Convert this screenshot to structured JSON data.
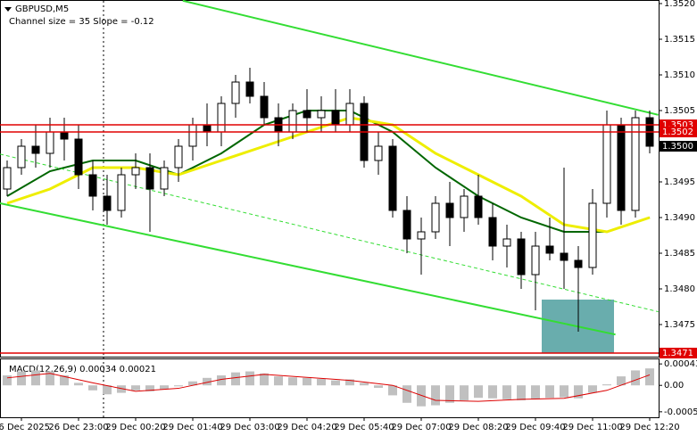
{
  "chart_data": {
    "type": "candlestick",
    "title": "GBPUSD,M5",
    "subtitle": "Channel size = 35 Slope = -0.12",
    "categories": [
      null,
      "26 Dec 2025",
      null,
      null,
      null,
      "26 Dec 23:00",
      null,
      null,
      null,
      "29 Dec 00:20",
      null,
      null,
      null,
      "29 Dec 01:40",
      null,
      null,
      null,
      "29 Dec 03:00",
      null,
      null,
      null,
      "29 Dec 04:20",
      null,
      null,
      null,
      "29 Dec 05:40",
      null,
      null,
      null,
      "29 Dec 07:00",
      null,
      null,
      null,
      "29 Dec 08:20",
      null,
      null,
      null,
      "29 Dec 09:40",
      null,
      null,
      null,
      "29 Dec 11:00",
      null,
      null,
      null,
      "29 Dec 12:20"
    ],
    "open": [
      1.3494,
      1.3497,
      1.35,
      1.3499,
      1.3502,
      1.3501,
      1.3496,
      1.3493,
      1.3491,
      1.3496,
      1.3497,
      1.3494,
      1.3497,
      1.35,
      1.3503,
      1.3502,
      1.3506,
      1.3509,
      1.3507,
      1.3504,
      1.3502,
      1.3505,
      1.3504,
      1.3505,
      1.3503,
      1.3506,
      1.3498,
      1.35,
      1.3491,
      1.3487,
      1.3488,
      1.3492,
      1.349,
      1.3493,
      1.349,
      1.3486,
      1.3487,
      1.3482,
      1.3486,
      1.3485,
      1.3484,
      1.3483,
      1.3492,
      1.3503,
      1.3491,
      1.3504
    ],
    "high": [
      1.3498,
      1.3501,
      1.3503,
      1.3504,
      1.3504,
      1.3503,
      1.3498,
      1.3496,
      1.3497,
      1.3499,
      1.3499,
      1.3498,
      1.3501,
      1.3504,
      1.3506,
      1.3507,
      1.351,
      1.3511,
      1.3509,
      1.3506,
      1.3506,
      1.3508,
      1.3507,
      1.3508,
      1.3508,
      1.3507,
      1.3502,
      1.3501,
      1.3493,
      1.349,
      1.3493,
      1.3495,
      1.3494,
      1.3496,
      1.3492,
      1.3489,
      1.3488,
      1.3488,
      1.349,
      1.3497,
      1.3486,
      1.3494,
      1.3505,
      1.3504,
      1.3505,
      1.3505
    ],
    "low": [
      1.3493,
      1.3496,
      1.3497,
      1.3497,
      1.3498,
      1.3494,
      1.3491,
      1.3489,
      1.349,
      1.3494,
      1.3488,
      1.3493,
      1.3495,
      1.3498,
      1.35,
      1.35,
      1.3504,
      1.3506,
      1.3503,
      1.35,
      1.3501,
      1.3502,
      1.3502,
      1.3502,
      1.3502,
      1.3497,
      1.3496,
      1.349,
      1.3485,
      1.3482,
      1.3487,
      1.3486,
      1.3488,
      1.3489,
      1.3484,
      1.3483,
      1.348,
      1.3477,
      1.3484,
      1.348,
      1.3474,
      1.3482,
      1.349,
      1.3489,
      1.349,
      1.3499
    ],
    "close": [
      1.3497,
      1.35,
      1.3499,
      1.3502,
      1.3501,
      1.3496,
      1.3493,
      1.3491,
      1.3496,
      1.3497,
      1.3494,
      1.3497,
      1.35,
      1.3503,
      1.3502,
      1.3506,
      1.3509,
      1.3507,
      1.3504,
      1.3502,
      1.3505,
      1.3504,
      1.3505,
      1.3503,
      1.3506,
      1.3498,
      1.35,
      1.3491,
      1.3487,
      1.3488,
      1.3492,
      1.349,
      1.3493,
      1.349,
      1.3486,
      1.3487,
      1.3482,
      1.3486,
      1.3485,
      1.3484,
      1.3483,
      1.3492,
      1.3503,
      1.3491,
      1.3504,
      1.35
    ],
    "lines": [
      {
        "color": "#00aa00",
        "width": 2,
        "x": [
          0,
          3,
          6,
          9,
          12,
          15,
          18,
          21,
          24,
          27,
          30,
          33,
          36,
          39,
          42,
          45
        ],
        "values": [
          1.3493,
          1.34965,
          1.3498,
          1.3498,
          1.3496,
          1.3499,
          1.3503,
          1.3505,
          1.3505,
          1.3502,
          1.3497,
          1.3493,
          1.349,
          1.3488,
          1.3488,
          1.349
        ]
      },
      {
        "color": "#eeee00",
        "width": 3,
        "x": [
          0,
          3,
          6,
          9,
          12,
          15,
          18,
          21,
          24,
          27,
          30,
          33,
          36,
          39,
          42,
          45
        ],
        "values": [
          1.3492,
          1.3494,
          1.3497,
          1.3497,
          1.3496,
          1.3498,
          1.35,
          1.3502,
          1.3504,
          1.3503,
          1.3499,
          1.3496,
          1.3493,
          1.3489,
          1.3488,
          1.349
        ]
      },
      {
        "color": "#33dd33",
        "width": 2,
        "x": [
          12.3,
          45.6
        ],
        "values": [
          1.35204,
          1.35044
        ]
      },
      {
        "color": "#33dd33",
        "width": 2,
        "x": [
          -0.5,
          42.6
        ],
        "values": [
          1.3492,
          1.34736
        ]
      },
      {
        "color": "#33dd33",
        "width": 1,
        "style": "dashed",
        "x": [
          -0.5,
          45.6
        ],
        "values": [
          1.34989,
          1.34768
        ]
      }
    ],
    "ma_green_color": "#006600",
    "ylim": [
      1.34705,
      1.35205
    ],
    "yticks": [
      {
        "value": 1.352,
        "label": "1.3520"
      },
      1.3515,
      {
        "value": 1.351,
        "label": "1.3510"
      },
      1.3505,
      {
        "value": 1.35,
        "label": "1.3500"
      },
      1.3495,
      {
        "value": 1.349,
        "label": "1.3490"
      },
      1.3485,
      {
        "value": 1.348,
        "label": "1.3480"
      },
      1.3475
    ],
    "levels": [
      {
        "value": 1.3503,
        "label": "1.3503"
      },
      {
        "value": 1.3502,
        "label": "1.3502"
      },
      {
        "value": 1.3471,
        "label": "1.3471"
      }
    ],
    "last_price": {
      "value": 1.35,
      "label": "1.3500"
    },
    "macd": {
      "title": "MACD(12,26,9) 0.00034 0.00021",
      "histogram": [
        0.0002,
        0.00028,
        0.0003,
        0.00028,
        0.0002,
        5e-05,
        -0.0001,
        -0.00018,
        -0.00015,
        -0.0001,
        -0.00012,
        -8e-05,
        -2e-05,
        8e-05,
        0.00015,
        0.0002,
        0.00026,
        0.00028,
        0.00024,
        0.00018,
        0.00016,
        0.00015,
        0.00013,
        0.0001,
        0.00012,
        5e-05,
        -5e-05,
        -0.0002,
        -0.00035,
        -0.00042,
        -0.0004,
        -0.00035,
        -0.0003,
        -0.00025,
        -0.00026,
        -0.00028,
        -0.0003,
        -0.00028,
        -0.00025,
        -0.00024,
        -0.00026,
        -0.00015,
        2e-05,
        0.00018,
        0.0003,
        0.00034
      ],
      "signal_x": [
        0,
        3,
        6,
        9,
        12,
        15,
        18,
        21,
        24,
        27,
        30,
        33,
        36,
        39,
        42,
        45
      ],
      "signal": [
        0.00015,
        0.00024,
        5e-05,
        -0.00012,
        -6e-05,
        0.00012,
        0.00022,
        0.00016,
        0.0001,
        0,
        -0.0003,
        -0.00032,
        -0.00028,
        -0.00026,
        -0.0001,
        0.00021
      ],
      "ylim": [
        0.00054,
        -0.00064
      ],
      "yticks": [
        0.00043,
        {
          "value": 0,
          "label": "0.00"
        },
        -0.00053
      ],
      "hist_color": "#c0c0c0",
      "signal_color": "#dd0000"
    }
  }
}
